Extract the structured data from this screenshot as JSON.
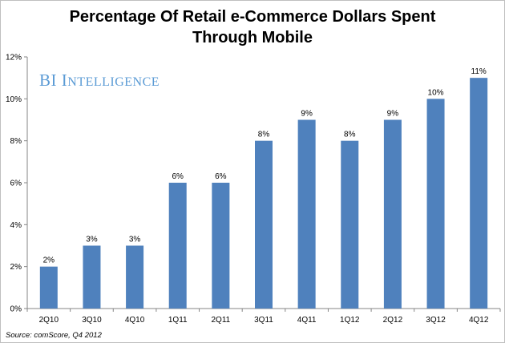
{
  "chart_data": {
    "type": "bar",
    "title": "Percentage Of Retail e-Commerce Dollars Spent Through Mobile",
    "title_lines": [
      "Percentage Of Retail e-Commerce Dollars Spent",
      "Through Mobile"
    ],
    "categories": [
      "2Q10",
      "3Q10",
      "4Q10",
      "1Q11",
      "2Q11",
      "3Q11",
      "4Q11",
      "1Q12",
      "2Q12",
      "3Q12",
      "4Q12"
    ],
    "values": [
      2,
      3,
      3,
      6,
      6,
      8,
      9,
      8,
      9,
      10,
      11
    ],
    "data_labels": [
      "2%",
      "3%",
      "3%",
      "6%",
      "6%",
      "8%",
      "9%",
      "8%",
      "9%",
      "10%",
      "11%"
    ],
    "yticks": [
      0,
      2,
      4,
      6,
      8,
      10,
      12
    ],
    "ytick_labels": [
      "0%",
      "2%",
      "4%",
      "6%",
      "8%",
      "10%",
      "12%"
    ],
    "ylim": [
      0,
      12
    ],
    "xlabel": "",
    "ylabel": "",
    "grid": false,
    "bar_color": "#4f81bd",
    "watermark": "BI Intelligence",
    "source": "Source: comScore, Q4 2012"
  }
}
